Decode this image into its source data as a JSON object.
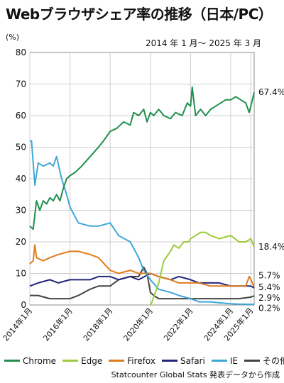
{
  "header": {
    "title": "Webブラウザシェア率の推移（日本/PC）",
    "period": "2014 年 1 月〜 2025 年 3 月",
    "unit": "(%)"
  },
  "source": "Statcounter Global Stats 発表データから作成",
  "colors": {
    "Chrome": "#1f8f4e",
    "Edge": "#9ccb3b",
    "Firefox": "#e07b1a",
    "Safari": "#24267a",
    "IE": "#3ea7d8",
    "その他": "#444444"
  },
  "chart_data": {
    "type": "line",
    "ylabel": "(%)",
    "ylim": [
      0,
      80
    ],
    "yticks": [
      0,
      10,
      20,
      30,
      40,
      50,
      60,
      70,
      80
    ],
    "xlim": [
      "2014-01",
      "2025-03"
    ],
    "xticks": [
      {
        "x": "2014-01",
        "label": "2014年1月"
      },
      {
        "x": "2016-01",
        "label": "2016年1月"
      },
      {
        "x": "2018-01",
        "label": "2018年1月"
      },
      {
        "x": "2020-01",
        "label": "2020年1月"
      },
      {
        "x": "2022-01",
        "label": "2022年1月"
      },
      {
        "x": "2024-01",
        "label": "2024年1月"
      },
      {
        "x": "2025-01",
        "label": "2025年1月"
      }
    ],
    "grid": true,
    "legend_position": "bottom",
    "series": [
      {
        "name": "Chrome",
        "end_label": "67.4%",
        "points": [
          [
            "2014-01",
            25
          ],
          [
            "2014-03",
            24
          ],
          [
            "2014-05",
            33
          ],
          [
            "2014-07",
            30
          ],
          [
            "2014-09",
            33
          ],
          [
            "2014-11",
            32
          ],
          [
            "2015-01",
            34
          ],
          [
            "2015-03",
            33
          ],
          [
            "2015-05",
            35
          ],
          [
            "2015-07",
            33
          ],
          [
            "2015-09",
            37
          ],
          [
            "2015-11",
            40
          ],
          [
            "2016-01",
            41
          ],
          [
            "2016-04",
            42
          ],
          [
            "2016-08",
            44
          ],
          [
            "2017-01",
            47
          ],
          [
            "2017-06",
            50
          ],
          [
            "2017-09",
            52
          ],
          [
            "2018-01",
            55
          ],
          [
            "2018-05",
            56
          ],
          [
            "2018-09",
            58
          ],
          [
            "2019-01",
            57
          ],
          [
            "2019-03",
            61
          ],
          [
            "2019-06",
            60
          ],
          [
            "2019-09",
            62
          ],
          [
            "2019-11",
            58
          ],
          [
            "2020-01",
            61
          ],
          [
            "2020-03",
            60
          ],
          [
            "2020-06",
            62
          ],
          [
            "2020-09",
            60
          ],
          [
            "2021-01",
            59
          ],
          [
            "2021-04",
            61
          ],
          [
            "2021-08",
            60
          ],
          [
            "2021-11",
            64
          ],
          [
            "2022-01",
            63
          ],
          [
            "2022-02",
            69
          ],
          [
            "2022-04",
            60
          ],
          [
            "2022-07",
            62
          ],
          [
            "2022-10",
            60
          ],
          [
            "2023-01",
            62
          ],
          [
            "2023-04",
            63
          ],
          [
            "2023-07",
            64
          ],
          [
            "2023-10",
            65
          ],
          [
            "2024-01",
            65
          ],
          [
            "2024-04",
            66
          ],
          [
            "2024-07",
            65
          ],
          [
            "2024-10",
            64
          ],
          [
            "2024-12",
            61
          ],
          [
            "2025-01",
            63
          ],
          [
            "2025-03",
            67.4
          ]
        ]
      },
      {
        "name": "Edge",
        "end_label": "18.4%",
        "points": [
          [
            "2020-01",
            0
          ],
          [
            "2020-02",
            1
          ],
          [
            "2020-04",
            4
          ],
          [
            "2020-06",
            7
          ],
          [
            "2020-09",
            14
          ],
          [
            "2021-01",
            17
          ],
          [
            "2021-03",
            19
          ],
          [
            "2021-06",
            18
          ],
          [
            "2021-09",
            20
          ],
          [
            "2021-12",
            20
          ],
          [
            "2022-01",
            21
          ],
          [
            "2022-04",
            22
          ],
          [
            "2022-07",
            23
          ],
          [
            "2022-10",
            23
          ],
          [
            "2023-01",
            22
          ],
          [
            "2023-06",
            21
          ],
          [
            "2024-01",
            22
          ],
          [
            "2024-06",
            20
          ],
          [
            "2024-10",
            20
          ],
          [
            "2025-01",
            21
          ],
          [
            "2025-03",
            18.4
          ]
        ]
      },
      {
        "name": "Firefox",
        "end_label": "5.7%",
        "points": [
          [
            "2014-01",
            13
          ],
          [
            "2014-03",
            14
          ],
          [
            "2014-04",
            19
          ],
          [
            "2014-05",
            15
          ],
          [
            "2014-09",
            14
          ],
          [
            "2015-01",
            15
          ],
          [
            "2015-06",
            16
          ],
          [
            "2016-01",
            17
          ],
          [
            "2016-06",
            17
          ],
          [
            "2017-01",
            16
          ],
          [
            "2017-06",
            15
          ],
          [
            "2018-01",
            11
          ],
          [
            "2018-06",
            10
          ],
          [
            "2019-01",
            11
          ],
          [
            "2019-06",
            10
          ],
          [
            "2020-01",
            10
          ],
          [
            "2020-06",
            9
          ],
          [
            "2021-01",
            8
          ],
          [
            "2021-06",
            7
          ],
          [
            "2022-01",
            7
          ],
          [
            "2022-06",
            7
          ],
          [
            "2023-01",
            6
          ],
          [
            "2023-06",
            6
          ],
          [
            "2024-01",
            6
          ],
          [
            "2024-06",
            6
          ],
          [
            "2024-10",
            6
          ],
          [
            "2024-12",
            9
          ],
          [
            "2025-01",
            8
          ],
          [
            "2025-03",
            5.7
          ]
        ]
      },
      {
        "name": "Safari",
        "end_label": "5.4%",
        "points": [
          [
            "2014-01",
            6
          ],
          [
            "2014-06",
            7
          ],
          [
            "2015-01",
            8
          ],
          [
            "2015-06",
            7
          ],
          [
            "2016-01",
            8
          ],
          [
            "2016-06",
            8
          ],
          [
            "2017-01",
            8
          ],
          [
            "2017-06",
            9
          ],
          [
            "2018-01",
            9
          ],
          [
            "2018-06",
            8
          ],
          [
            "2019-01",
            9
          ],
          [
            "2019-06",
            8
          ],
          [
            "2020-01",
            10
          ],
          [
            "2020-06",
            9
          ],
          [
            "2021-01",
            8
          ],
          [
            "2021-06",
            9
          ],
          [
            "2022-01",
            8
          ],
          [
            "2022-06",
            7
          ],
          [
            "2023-01",
            7
          ],
          [
            "2023-06",
            7
          ],
          [
            "2024-01",
            6
          ],
          [
            "2024-06",
            6
          ],
          [
            "2024-10",
            6
          ],
          [
            "2025-01",
            6
          ],
          [
            "2025-03",
            5.4
          ]
        ]
      },
      {
        "name": "IE",
        "end_label": "0.2%",
        "points": [
          [
            "2014-01",
            52
          ],
          [
            "2014-02",
            52
          ],
          [
            "2014-04",
            38
          ],
          [
            "2014-06",
            45
          ],
          [
            "2014-09",
            44
          ],
          [
            "2015-01",
            45
          ],
          [
            "2015-03",
            44
          ],
          [
            "2015-05",
            47
          ],
          [
            "2015-08",
            40
          ],
          [
            "2015-11",
            35
          ],
          [
            "2016-01",
            31
          ],
          [
            "2016-06",
            26
          ],
          [
            "2017-01",
            25
          ],
          [
            "2017-06",
            25
          ],
          [
            "2018-01",
            26
          ],
          [
            "2018-06",
            22
          ],
          [
            "2019-01",
            20
          ],
          [
            "2019-06",
            15
          ],
          [
            "2019-09",
            11
          ],
          [
            "2020-01",
            8
          ],
          [
            "2020-06",
            5
          ],
          [
            "2021-01",
            4
          ],
          [
            "2021-06",
            3
          ],
          [
            "2022-01",
            2
          ],
          [
            "2022-06",
            1
          ],
          [
            "2023-01",
            1
          ],
          [
            "2023-06",
            0.7
          ],
          [
            "2024-01",
            0.4
          ],
          [
            "2024-06",
            0.3
          ],
          [
            "2025-03",
            0.2
          ]
        ]
      },
      {
        "name": "その他",
        "end_label": "2.9%",
        "points": [
          [
            "2014-01",
            3
          ],
          [
            "2014-06",
            3
          ],
          [
            "2015-01",
            2
          ],
          [
            "2015-06",
            2
          ],
          [
            "2016-01",
            2
          ],
          [
            "2016-06",
            3
          ],
          [
            "2017-01",
            5
          ],
          [
            "2017-06",
            6
          ],
          [
            "2018-01",
            6
          ],
          [
            "2018-06",
            8
          ],
          [
            "2019-01",
            9
          ],
          [
            "2019-06",
            9
          ],
          [
            "2019-09",
            12
          ],
          [
            "2019-11",
            10
          ],
          [
            "2020-01",
            4
          ],
          [
            "2020-03",
            3
          ],
          [
            "2020-06",
            2
          ],
          [
            "2021-01",
            2
          ],
          [
            "2021-06",
            2
          ],
          [
            "2022-01",
            2
          ],
          [
            "2022-06",
            2
          ],
          [
            "2023-01",
            2
          ],
          [
            "2023-06",
            2
          ],
          [
            "2024-01",
            2
          ],
          [
            "2024-06",
            2
          ],
          [
            "2025-01",
            2.5
          ],
          [
            "2025-03",
            2.9
          ]
        ]
      }
    ]
  }
}
